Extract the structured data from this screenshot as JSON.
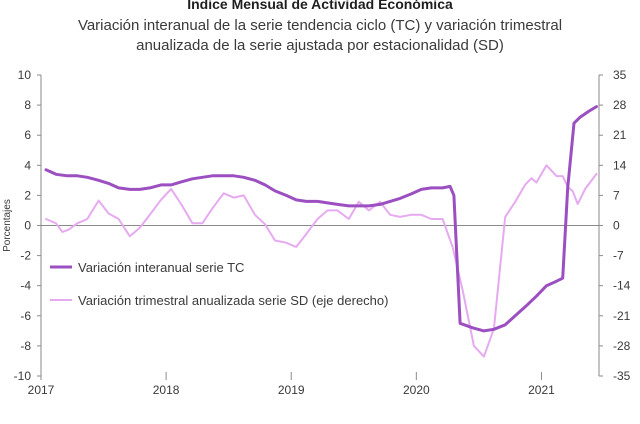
{
  "chart_data": {
    "type": "line",
    "title": "Indice Mensual de  Actividad Económica",
    "subtitle_lines": [
      "Variación interanual de la serie tendencia ciclo (TC) y variación trimestral",
      "anualizada de la serie ajustada por estacionalidad (SD)"
    ],
    "ylabel": "Porcentajes",
    "ylim_left": [
      -10,
      10
    ],
    "ylim_right": [
      -35,
      35
    ],
    "yticks_left": [
      "-10",
      "-8",
      "-6",
      "-4",
      "-2",
      "0",
      "2",
      "4",
      "6",
      "8",
      "10"
    ],
    "yticks_right": [
      "-35",
      "-28",
      "-21",
      "-14",
      "-7",
      "0",
      "7",
      "14",
      "21",
      "28",
      "35"
    ],
    "xticks": [
      {
        "label": "2017",
        "x": 2017.0
      },
      {
        "label": "2018",
        "x": 2018.0
      },
      {
        "label": "2019",
        "x": 2019.0
      },
      {
        "label": "2020",
        "x": 2020.0
      },
      {
        "label": "2021",
        "x": 2021.0
      }
    ],
    "xlim": [
      2017.0,
      2021.46
    ],
    "grid": false,
    "legend_position": "lower-left",
    "series": [
      {
        "name": "Variación interanual serie TC",
        "axis": "left",
        "color": "#9b4fc0",
        "points": [
          [
            2017.04,
            3.7
          ],
          [
            2017.12,
            3.4
          ],
          [
            2017.21,
            3.3
          ],
          [
            2017.29,
            3.3
          ],
          [
            2017.37,
            3.2
          ],
          [
            2017.46,
            3.0
          ],
          [
            2017.54,
            2.8
          ],
          [
            2017.62,
            2.5
          ],
          [
            2017.71,
            2.4
          ],
          [
            2017.79,
            2.4
          ],
          [
            2017.87,
            2.5
          ],
          [
            2017.96,
            2.7
          ],
          [
            2018.04,
            2.7
          ],
          [
            2018.12,
            2.9
          ],
          [
            2018.21,
            3.1
          ],
          [
            2018.29,
            3.2
          ],
          [
            2018.37,
            3.3
          ],
          [
            2018.46,
            3.3
          ],
          [
            2018.54,
            3.3
          ],
          [
            2018.62,
            3.2
          ],
          [
            2018.71,
            3.0
          ],
          [
            2018.79,
            2.7
          ],
          [
            2018.87,
            2.3
          ],
          [
            2018.96,
            2.0
          ],
          [
            2019.04,
            1.7
          ],
          [
            2019.12,
            1.6
          ],
          [
            2019.21,
            1.6
          ],
          [
            2019.29,
            1.5
          ],
          [
            2019.37,
            1.4
          ],
          [
            2019.46,
            1.3
          ],
          [
            2019.54,
            1.3
          ],
          [
            2019.62,
            1.3
          ],
          [
            2019.71,
            1.4
          ],
          [
            2019.79,
            1.6
          ],
          [
            2019.87,
            1.8
          ],
          [
            2019.96,
            2.1
          ],
          [
            2020.04,
            2.4
          ],
          [
            2020.12,
            2.5
          ],
          [
            2020.21,
            2.5
          ],
          [
            2020.27,
            2.6
          ],
          [
            2020.3,
            2.0
          ],
          [
            2020.35,
            -6.5
          ],
          [
            2020.45,
            -6.8
          ],
          [
            2020.54,
            -7.0
          ],
          [
            2020.62,
            -6.9
          ],
          [
            2020.71,
            -6.6
          ],
          [
            2020.79,
            -6.0
          ],
          [
            2020.87,
            -5.4
          ],
          [
            2020.96,
            -4.7
          ],
          [
            2021.04,
            -4.0
          ],
          [
            2021.12,
            -3.7
          ],
          [
            2021.17,
            -3.5
          ],
          [
            2021.21,
            2.5
          ],
          [
            2021.26,
            6.8
          ],
          [
            2021.31,
            7.2
          ],
          [
            2021.38,
            7.6
          ],
          [
            2021.44,
            7.9
          ]
        ]
      },
      {
        "name": "Variación trimestral anualizada serie SD (eje derecho)",
        "axis": "right",
        "color": "#e6aaf0",
        "points": [
          [
            2017.04,
            1.5
          ],
          [
            2017.12,
            0.5
          ],
          [
            2017.17,
            -1.5
          ],
          [
            2017.22,
            -1.0
          ],
          [
            2017.29,
            0.5
          ],
          [
            2017.37,
            1.5
          ],
          [
            2017.46,
            5.8
          ],
          [
            2017.54,
            2.8
          ],
          [
            2017.62,
            1.5
          ],
          [
            2017.71,
            -2.5
          ],
          [
            2017.79,
            -0.5
          ],
          [
            2017.87,
            2.5
          ],
          [
            2017.96,
            6.0
          ],
          [
            2018.04,
            8.5
          ],
          [
            2018.12,
            5.0
          ],
          [
            2018.21,
            0.5
          ],
          [
            2018.29,
            0.5
          ],
          [
            2018.37,
            4.0
          ],
          [
            2018.46,
            7.5
          ],
          [
            2018.54,
            6.5
          ],
          [
            2018.62,
            7.0
          ],
          [
            2018.71,
            2.5
          ],
          [
            2018.79,
            0.3
          ],
          [
            2018.87,
            -3.5
          ],
          [
            2018.96,
            -4.0
          ],
          [
            2019.04,
            -5.0
          ],
          [
            2019.12,
            -2.0
          ],
          [
            2019.21,
            1.5
          ],
          [
            2019.29,
            3.5
          ],
          [
            2019.37,
            3.5
          ],
          [
            2019.46,
            1.5
          ],
          [
            2019.54,
            5.5
          ],
          [
            2019.62,
            3.5
          ],
          [
            2019.71,
            5.5
          ],
          [
            2019.79,
            2.5
          ],
          [
            2019.87,
            2.0
          ],
          [
            2019.96,
            2.5
          ],
          [
            2020.04,
            2.5
          ],
          [
            2020.12,
            1.5
          ],
          [
            2020.21,
            1.5
          ],
          [
            2020.29,
            -5.0
          ],
          [
            2020.37,
            -15.0
          ],
          [
            2020.46,
            -28.0
          ],
          [
            2020.54,
            -30.5
          ],
          [
            2020.62,
            -24.0
          ],
          [
            2020.71,
            2.0
          ],
          [
            2020.79,
            5.5
          ],
          [
            2020.87,
            9.5
          ],
          [
            2020.92,
            11.0
          ],
          [
            2020.96,
            10.0
          ],
          [
            2021.04,
            14.0
          ],
          [
            2021.12,
            11.5
          ],
          [
            2021.17,
            11.5
          ],
          [
            2021.21,
            9.0
          ],
          [
            2021.25,
            8.0
          ],
          [
            2021.29,
            5.0
          ],
          [
            2021.35,
            8.5
          ],
          [
            2021.44,
            12.0
          ]
        ]
      }
    ]
  }
}
